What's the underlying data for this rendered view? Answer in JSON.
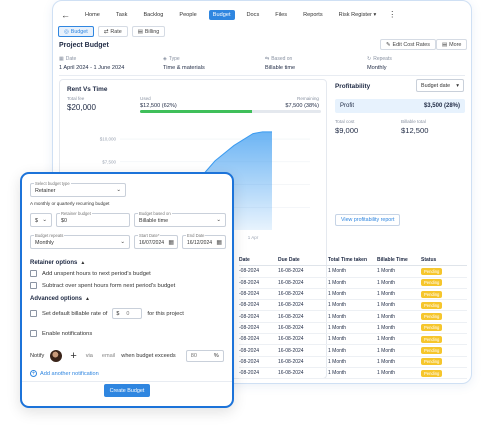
{
  "nav": {
    "back": "←",
    "tabs": [
      "Home",
      "Task",
      "Backlog",
      "People",
      "Budget",
      "Docs",
      "Files",
      "Reports",
      "Risk Register ▾"
    ],
    "active_index": 4,
    "more": "⋮"
  },
  "subtabs": [
    {
      "icon": "◎",
      "label": "Budget"
    },
    {
      "icon": "⇄",
      "label": "Rate"
    },
    {
      "icon": "▤",
      "label": "Billing"
    }
  ],
  "project": {
    "title": "Project Budget",
    "edit_cost_rates": "Edit Cost Rates",
    "more": "More"
  },
  "info": {
    "date": {
      "label": "Date",
      "value": "1 April 2024 - 1 June 2024"
    },
    "type": {
      "label": "Type",
      "value": "Time & materials"
    },
    "based_on": {
      "label": "Based on",
      "value": "Billable time"
    },
    "repeats": {
      "label": "Repeats",
      "value": "Monthly"
    }
  },
  "rent_vs_time": {
    "title": "Rent Vs Time",
    "total_fee_label": "Total fee",
    "total_fee": "$20,000",
    "used_label": "Used",
    "used_value": "$12,500 (62%)",
    "remaining_label": "Remaining",
    "remaining_value": "$7,500 (38%)",
    "used_fraction": 0.62
  },
  "chart_data": {
    "type": "area",
    "title": "",
    "x": [
      0,
      0.1,
      0.2,
      0.3,
      0.4,
      0.5,
      0.6,
      0.7,
      0.75,
      0.8
    ],
    "series": [
      {
        "values": [
          0,
          500,
          1800,
          3200,
          5200,
          7600,
          9300,
          10600,
          10800,
          10800
        ]
      }
    ],
    "y_ticks": [
      "$10,000",
      "$7,500",
      "$5,000",
      "$2,500"
    ],
    "y_tick_values": [
      10000,
      7500,
      5000,
      2500
    ],
    "ylim": [
      0,
      11000
    ],
    "x_tick_label": "1 Apr",
    "grid": true,
    "color": "#3b9bf0"
  },
  "profitability": {
    "title": "Profitability",
    "selector": "Budget date",
    "profit_label": "Profit",
    "profit_value": "$3,500 (28%)",
    "total_cost_label": "Total cost",
    "total_cost": "$9,000",
    "billable_label": "Billable total",
    "billable_total": "$12,500",
    "view_report": "View profitability report"
  },
  "table": {
    "headers": [
      "Date",
      "Due Date",
      "Total Time taken",
      "Billable Time",
      "Status"
    ],
    "rows": [
      [
        "-08-2024",
        "16-08-2024",
        "1 Month",
        "1 Month",
        "Pending"
      ],
      [
        "-08-2024",
        "16-08-2024",
        "1 Month",
        "1 Month",
        "Pending"
      ],
      [
        "-08-2024",
        "16-08-2024",
        "1 Month",
        "1 Month",
        "Pending"
      ],
      [
        "-08-2024",
        "16-08-2024",
        "1 Month",
        "1 Month",
        "Pending"
      ],
      [
        "-08-2024",
        "16-08-2024",
        "1 Month",
        "1 Month",
        "Pending"
      ],
      [
        "-08-2024",
        "16-08-2024",
        "1 Month",
        "1 Month",
        "Pending"
      ],
      [
        "-08-2024",
        "16-08-2024",
        "1 Month",
        "1 Month",
        "Pending"
      ],
      [
        "-08-2024",
        "16-08-2024",
        "1 Month",
        "1 Month",
        "Pending"
      ],
      [
        "-08-2024",
        "16-08-2024",
        "1 Month",
        "1 Month",
        "Pending"
      ],
      [
        "-08-2024",
        "16-08-2024",
        "1 Month",
        "1 Month",
        "Pending"
      ]
    ],
    "status_color": "#f6c62c"
  },
  "modal": {
    "budget_type_label": "Select budget type",
    "budget_type_value": "Retainer",
    "hint": "A monthly or quarterly recurring budget",
    "currency": "$",
    "retainer_budget_label": "Retainer budget",
    "retainer_budget_value": "$0",
    "budget_based_on_label": "Budget based on",
    "budget_based_on_value": "Billable time",
    "budget_repeats_label": "Budget repeats",
    "budget_repeats_value": "Monthly",
    "start_date_label": "Start Date*",
    "start_date_value": "16/07/2024",
    "end_date_label": "End Date",
    "end_date_value": "16/12/2024",
    "retainer_options": "Retainer options",
    "opt_add_unspent": "Add unspent hours to next period's budget",
    "opt_subtract_over": "Subtract over spent hours form next period's budget",
    "advanced_options": "Advanced options",
    "set_default_rate": "Set default billable rate of",
    "rate_currency": "$",
    "rate_value": "0",
    "for_project": "for this project",
    "enable_notifications": "Enable notifications",
    "notify": "Notify",
    "via": "via",
    "email": "email",
    "when_exceeds": "when budget exceeds",
    "percent_value": "80",
    "percent_sign": "%",
    "add_notification": "Add another notification",
    "create_budget": "Create Budget",
    "accent": "#1c73d9"
  }
}
